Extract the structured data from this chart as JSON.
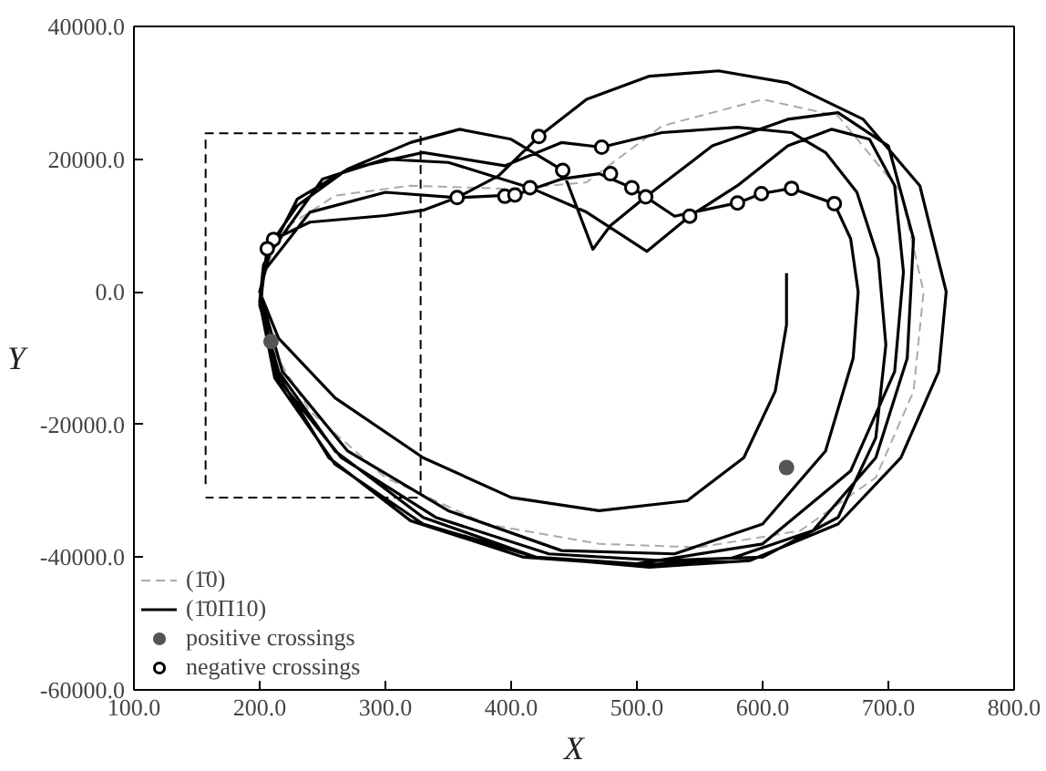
{
  "chart_data": {
    "type": "line",
    "xlabel": "X",
    "ylabel": "Y",
    "xlim": [
      100,
      800
    ],
    "ylim": [
      -60000,
      40000
    ],
    "xticks": [
      {
        "value": 100,
        "label": "100.0"
      },
      {
        "value": 200,
        "label": "200.0"
      },
      {
        "value": 300,
        "label": "300.0"
      },
      {
        "value": 400,
        "label": "400.0"
      },
      {
        "value": 500,
        "label": "500.0"
      },
      {
        "value": 600,
        "label": "600.0"
      },
      {
        "value": 700,
        "label": "700.0"
      },
      {
        "value": 800,
        "label": "800.0"
      }
    ],
    "yticks": [
      {
        "value": -60000,
        "label": "-60000.0"
      },
      {
        "value": -40000,
        "label": "-40000.0"
      },
      {
        "value": -20000,
        "label": "-20000.0"
      },
      {
        "value": 0,
        "label": "0.0"
      },
      {
        "value": 20000,
        "label": "20000.0"
      },
      {
        "value": 40000,
        "label": "40000.0"
      }
    ],
    "grid": false,
    "legend": "bottom left",
    "series": [
      {
        "name": "(1̄0)",
        "color": "#aaaaaa",
        "line_style": "dashed",
        "x": [
          200,
          215,
          260,
          320,
          400,
          460,
          520,
          600,
          660,
          710,
          728,
          720,
          690,
          630,
          550,
          470,
          380,
          300,
          240,
          208,
          201
        ],
        "values": [
          0,
          9000,
          14500,
          16000,
          15500,
          16500,
          25000,
          29000,
          26500,
          15000,
          0,
          -15000,
          -28000,
          -36000,
          -38500,
          -38000,
          -35000,
          -28000,
          -18000,
          -8000,
          -1500
        ]
      },
      {
        "name": "(1̄0Π10)",
        "color": "#000000",
        "line_style": "solid",
        "x": [
          619,
          619,
          610,
          585,
          540,
          470,
          400,
          330,
          260,
          215,
          200,
          211,
          240,
          300,
          330,
          357,
          390,
          422,
          460,
          510,
          565,
          620,
          680,
          725,
          746,
          740,
          710,
          660,
          590,
          510,
          420,
          330,
          260,
          215,
          200,
          206,
          230,
          270,
          320,
          359,
          400,
          441,
          465,
          479,
          507,
          560,
          620,
          660,
          700,
          720,
          715,
          690,
          640,
          570,
          500,
          410,
          320,
          255,
          213,
          201,
          205,
          250,
          300,
          350,
          415,
          460,
          508,
          542,
          580,
          620,
          655,
          685,
          705,
          712,
          705,
          670,
          600,
          500,
          420,
          330,
          260,
          212,
          200,
          203,
          230,
          270,
          330,
          395,
          440,
          472,
          520,
          580,
          623,
          650,
          675,
          692,
          698,
          690,
          660,
          600,
          520,
          430,
          340,
          265,
          214,
          201,
          203,
          240,
          300,
          357,
          403,
          440,
          470,
          496,
          530,
          580,
          599,
          623,
          657,
          670,
          676,
          672,
          650,
          600,
          530,
          440,
          350,
          270,
          218,
          203
        ],
        "values": [
          2800,
          -5000,
          -15000,
          -25000,
          -31500,
          -33000,
          -31000,
          -25000,
          -16000,
          -7000,
          0,
          7900,
          10500,
          11500,
          12300,
          14200,
          17500,
          23400,
          29000,
          32500,
          33300,
          31500,
          26000,
          16000,
          0,
          -12000,
          -25000,
          -35000,
          -40500,
          -41500,
          -40000,
          -34000,
          -24000,
          -12000,
          -2000,
          6500,
          13000,
          18500,
          22500,
          24500,
          23000,
          18300,
          6400,
          10000,
          14300,
          22000,
          26000,
          27000,
          22000,
          8000,
          -10000,
          -25000,
          -36000,
          -40500,
          -41200,
          -40000,
          -34500,
          -25000,
          -12000,
          -1000,
          5000,
          17000,
          20000,
          19500,
          15700,
          12000,
          6100,
          11400,
          16000,
          22000,
          24500,
          23000,
          16000,
          3000,
          -12000,
          -27000,
          -38000,
          -41000,
          -40000,
          -35000,
          -26000,
          -13000,
          -1500,
          4000,
          14000,
          18500,
          21000,
          19000,
          22500,
          21800,
          24000,
          24800,
          24000,
          21000,
          15000,
          5000,
          -8000,
          -22000,
          -34000,
          -40000,
          -40500,
          -39500,
          -34000,
          -25000,
          -13000,
          -2000,
          3000,
          12000,
          15000,
          14200,
          14600,
          17000,
          17800,
          15700,
          11400,
          13400,
          14800,
          15600,
          13300,
          8000,
          0,
          -10000,
          -24000,
          -35000,
          -39500,
          -39000,
          -33000,
          -24000,
          -12000,
          -2000
        ]
      },
      {
        "color": "#000000",
        "line_style": "dashed",
        "x": [
          157,
          157,
          328,
          328,
          157
        ],
        "values": [
          -29000,
          23900,
          23900,
          -31000,
          -31000
        ]
      },
      {
        "name": "positive crossings",
        "type": "scatter",
        "marker": "circle",
        "color": "#555555",
        "x": [
          209,
          619
        ],
        "values": [
          -7500,
          -26500
        ]
      },
      {
        "name": "negative crossings",
        "type": "scatter",
        "marker": "circle",
        "color": "#000000",
        "x": [
          211,
          206,
          357,
          395,
          403,
          415,
          422,
          441,
          472,
          479,
          496,
          507,
          542,
          580,
          599,
          623,
          657
        ],
        "values": [
          7900,
          6500,
          14200,
          14400,
          14600,
          15700,
          23400,
          18300,
          21800,
          17800,
          15700,
          14300,
          11400,
          13400,
          14800,
          15600,
          13300
        ]
      }
    ]
  }
}
